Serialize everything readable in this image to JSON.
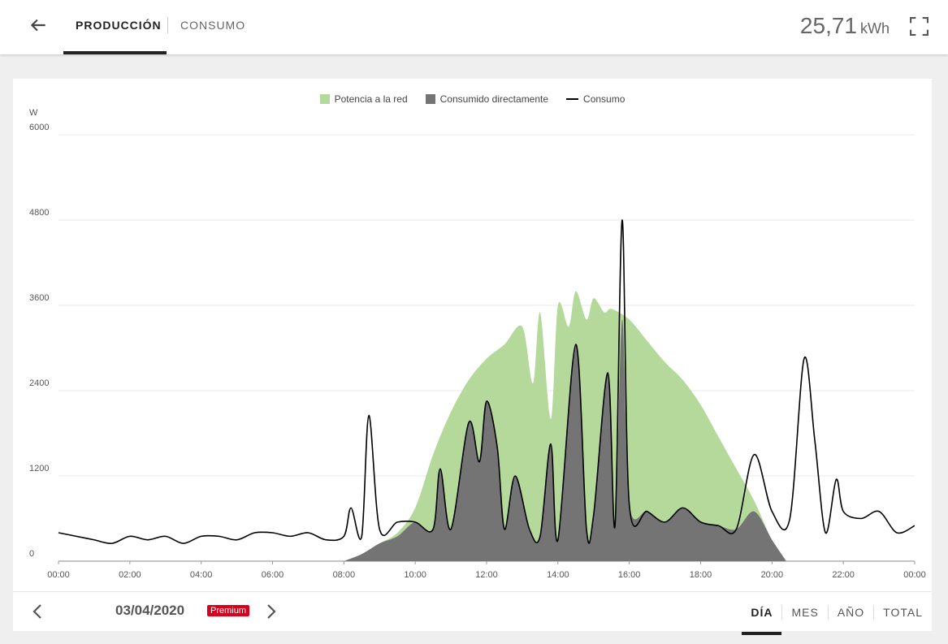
{
  "header": {
    "tabs": [
      {
        "label": "PRODUCCIÓN",
        "active": true
      },
      {
        "label": "CONSUMO",
        "active": false
      }
    ],
    "total_value": "25,71",
    "total_unit": "kWh",
    "icons": {
      "back": "arrow-left-icon",
      "fullscreen": "fullscreen-icon"
    }
  },
  "chart_data": {
    "type": "area",
    "ylabel": "W",
    "ylim": [
      0,
      6000
    ],
    "yticks": [
      "0",
      "1200",
      "2400",
      "3600",
      "4800",
      "6000"
    ],
    "xlim": [
      0,
      24
    ],
    "xticks": [
      "00:00",
      "02:00",
      "04:00",
      "06:00",
      "08:00",
      "10:00",
      "12:00",
      "14:00",
      "16:00",
      "18:00",
      "20:00",
      "22:00",
      "00:00"
    ],
    "grid": true,
    "legend_position": "top",
    "series": [
      {
        "name": "Potencia a la red",
        "kind": "area",
        "color": "#b4d99a",
        "points": [
          [
            8,
            0
          ],
          [
            8.5,
            100
          ],
          [
            9,
            250
          ],
          [
            9.5,
            400
          ],
          [
            10,
            750
          ],
          [
            10.5,
            1500
          ],
          [
            11,
            2100
          ],
          [
            11.5,
            2550
          ],
          [
            12,
            2850
          ],
          [
            12.5,
            3050
          ],
          [
            13,
            3300
          ],
          [
            13.3,
            2500
          ],
          [
            13.5,
            3500
          ],
          [
            13.8,
            2000
          ],
          [
            14,
            3600
          ],
          [
            14.3,
            3300
          ],
          [
            14.5,
            3800
          ],
          [
            14.8,
            3400
          ],
          [
            15,
            3700
          ],
          [
            15.3,
            3500
          ],
          [
            15.5,
            3550
          ],
          [
            16,
            3400
          ],
          [
            16.5,
            3100
          ],
          [
            17,
            2800
          ],
          [
            17.5,
            2550
          ],
          [
            18,
            2200
          ],
          [
            18.5,
            1750
          ],
          [
            19,
            1300
          ],
          [
            19.5,
            850
          ],
          [
            20,
            300
          ],
          [
            20.4,
            0
          ]
        ]
      },
      {
        "name": "Consumido directamente",
        "kind": "area",
        "color": "#747474",
        "points": [
          [
            8,
            0
          ],
          [
            8.5,
            100
          ],
          [
            9,
            250
          ],
          [
            9.5,
            350
          ],
          [
            10,
            550
          ],
          [
            10.5,
            450
          ],
          [
            10.7,
            1300
          ],
          [
            11,
            450
          ],
          [
            11.5,
            1950
          ],
          [
            11.8,
            1400
          ],
          [
            12,
            2250
          ],
          [
            12.3,
            1600
          ],
          [
            12.5,
            450
          ],
          [
            12.8,
            1200
          ],
          [
            13.2,
            450
          ],
          [
            13.5,
            350
          ],
          [
            13.8,
            1650
          ],
          [
            14,
            300
          ],
          [
            14.5,
            3050
          ],
          [
            14.8,
            450
          ],
          [
            15,
            650
          ],
          [
            15.4,
            2650
          ],
          [
            15.6,
            500
          ],
          [
            15.8,
            3400
          ],
          [
            16,
            800
          ],
          [
            16.5,
            700
          ],
          [
            17,
            550
          ],
          [
            17.5,
            750
          ],
          [
            18,
            550
          ],
          [
            18.5,
            500
          ],
          [
            19,
            450
          ],
          [
            19.5,
            700
          ],
          [
            20,
            300
          ],
          [
            20.4,
            0
          ]
        ]
      },
      {
        "name": "Consumo",
        "kind": "line",
        "color": "#000000",
        "points": [
          [
            0,
            400
          ],
          [
            0.5,
            350
          ],
          [
            1,
            300
          ],
          [
            1.5,
            250
          ],
          [
            2,
            350
          ],
          [
            2.5,
            300
          ],
          [
            3,
            350
          ],
          [
            3.5,
            250
          ],
          [
            4,
            350
          ],
          [
            4.5,
            350
          ],
          [
            5,
            300
          ],
          [
            5.5,
            400
          ],
          [
            6,
            400
          ],
          [
            6.5,
            350
          ],
          [
            7,
            400
          ],
          [
            7.5,
            300
          ],
          [
            8,
            350
          ],
          [
            8.2,
            750
          ],
          [
            8.5,
            350
          ],
          [
            8.7,
            2050
          ],
          [
            9,
            450
          ],
          [
            9.5,
            550
          ],
          [
            10,
            550
          ],
          [
            10.5,
            450
          ],
          [
            10.7,
            1300
          ],
          [
            11,
            450
          ],
          [
            11.5,
            1950
          ],
          [
            11.8,
            1400
          ],
          [
            12,
            2250
          ],
          [
            12.3,
            1600
          ],
          [
            12.5,
            450
          ],
          [
            12.8,
            1200
          ],
          [
            13.2,
            450
          ],
          [
            13.5,
            350
          ],
          [
            13.8,
            1650
          ],
          [
            14,
            300
          ],
          [
            14.5,
            3050
          ],
          [
            14.8,
            450
          ],
          [
            15,
            650
          ],
          [
            15.4,
            2650
          ],
          [
            15.6,
            500
          ],
          [
            15.8,
            4800
          ],
          [
            16,
            800
          ],
          [
            16.5,
            700
          ],
          [
            17,
            550
          ],
          [
            17.5,
            750
          ],
          [
            18,
            550
          ],
          [
            18.5,
            500
          ],
          [
            19,
            450
          ],
          [
            19.5,
            1500
          ],
          [
            20,
            700
          ],
          [
            20.5,
            600
          ],
          [
            20.9,
            2850
          ],
          [
            21.2,
            1700
          ],
          [
            21.5,
            400
          ],
          [
            21.8,
            1150
          ],
          [
            22,
            700
          ],
          [
            22.5,
            600
          ],
          [
            23,
            700
          ],
          [
            23.5,
            400
          ],
          [
            24,
            500
          ]
        ]
      }
    ]
  },
  "footer": {
    "date": "03/04/2020",
    "badge": "Premium",
    "period_tabs": [
      {
        "label": "DÍA",
        "active": true
      },
      {
        "label": "MES",
        "active": false
      },
      {
        "label": "AÑO",
        "active": false
      },
      {
        "label": "TOTAL",
        "active": false
      }
    ],
    "icons": {
      "prev": "chevron-left-icon",
      "next": "chevron-right-icon"
    }
  }
}
